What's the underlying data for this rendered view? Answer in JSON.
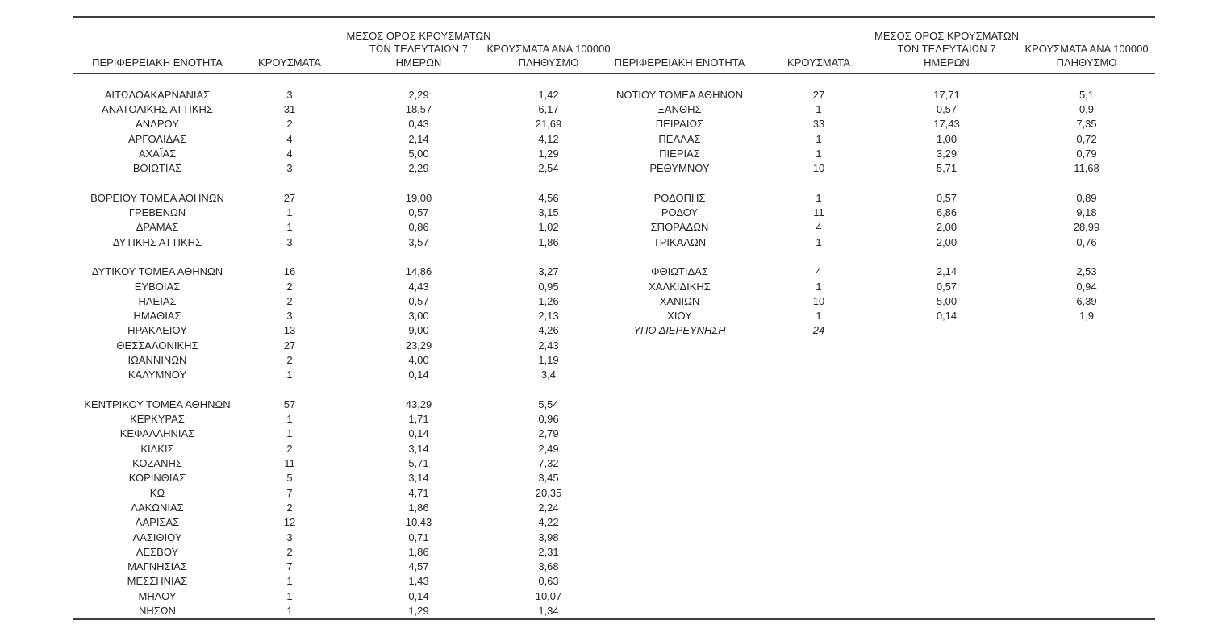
{
  "table": {
    "headers": {
      "region": "ΠΕΡΙΦΕΡΕΙΑΚΗ ΕΝΟΤΗΤΑ",
      "cases": "ΚΡΟΥΣΜΑΤΑ",
      "avg7": "ΜΕΣΟΣ ΟΡΟΣ ΚΡΟΥΣΜΑΤΩΝ\nΤΩΝ ΤΕΛΕΥΤΑΙΩΝ 7\nΗΜΕΡΩΝ",
      "per100k": "ΚΡΟΥΣΜΑΤΑ ΑΝΑ 100000\nΠΛΗΘΥΣΜΟ"
    },
    "text_color": "#262626",
    "rule_color": "#3d3d3d",
    "rows": [
      {
        "left": {
          "region": "ΑΙΤΩΛΟΑΚΑΡΝΑΝΙΑΣ",
          "cases": "3",
          "avg7": "2,29",
          "per100k": "1,42"
        },
        "right": {
          "region": "ΝΟΤΙΟΥ ΤΟΜΕΑ ΑΘΗΝΩΝ",
          "cases": "27",
          "avg7": "17,71",
          "per100k": "5,1"
        }
      },
      {
        "left": {
          "region": "ΑΝΑΤΟΛΙΚΗΣ ΑΤΤΙΚΗΣ",
          "cases": "31",
          "avg7": "18,57",
          "per100k": "6,17"
        },
        "right": {
          "region": "ΞΑΝΘΗΣ",
          "cases": "1",
          "avg7": "0,57",
          "per100k": "0,9"
        }
      },
      {
        "left": {
          "region": "ΑΝΔΡΟΥ",
          "cases": "2",
          "avg7": "0,43",
          "per100k": "21,69"
        },
        "right": {
          "region": "ΠΕΙΡΑΙΩΣ",
          "cases": "33",
          "avg7": "17,43",
          "per100k": "7,35"
        }
      },
      {
        "left": {
          "region": "ΑΡΓΟΛΙΔΑΣ",
          "cases": "4",
          "avg7": "2,14",
          "per100k": "4,12"
        },
        "right": {
          "region": "ΠΕΛΛΑΣ",
          "cases": "1",
          "avg7": "1,00",
          "per100k": "0,72"
        }
      },
      {
        "left": {
          "region": "ΑΧΑΪΑΣ",
          "cases": "4",
          "avg7": "5,00",
          "per100k": "1,29"
        },
        "right": {
          "region": "ΠΙΕΡΙΑΣ",
          "cases": "1",
          "avg7": "3,29",
          "per100k": "0,79"
        }
      },
      {
        "left": {
          "region": "ΒΟΙΩΤΙΑΣ",
          "cases": "3",
          "avg7": "2,29",
          "per100k": "2,54"
        },
        "right": {
          "region": "ΡΕΘΥΜΝΟΥ",
          "cases": "10",
          "avg7": "5,71",
          "per100k": "11,68"
        }
      },
      {
        "spacer": true
      },
      {
        "left": {
          "region": "ΒΟΡΕΙΟΥ ΤΟΜΕΑ ΑΘΗΝΩΝ",
          "cases": "27",
          "avg7": "19,00",
          "per100k": "4,56"
        },
        "right": {
          "region": "ΡΟΔΟΠΗΣ",
          "cases": "1",
          "avg7": "0,57",
          "per100k": "0,89"
        }
      },
      {
        "left": {
          "region": "ΓΡΕΒΕΝΩΝ",
          "cases": "1",
          "avg7": "0,57",
          "per100k": "3,15"
        },
        "right": {
          "region": "ΡΟΔΟΥ",
          "cases": "11",
          "avg7": "6,86",
          "per100k": "9,18"
        }
      },
      {
        "left": {
          "region": "ΔΡΑΜΑΣ",
          "cases": "1",
          "avg7": "0,86",
          "per100k": "1,02"
        },
        "right": {
          "region": "ΣΠΟΡΑΔΩΝ",
          "cases": "4",
          "avg7": "2,00",
          "per100k": "28,99"
        }
      },
      {
        "left": {
          "region": "ΔΥΤΙΚΗΣ ΑΤΤΙΚΗΣ",
          "cases": "3",
          "avg7": "3,57",
          "per100k": "1,86"
        },
        "right": {
          "region": "ΤΡΙΚΑΛΩΝ",
          "cases": "1",
          "avg7": "2,00",
          "per100k": "0,76"
        }
      },
      {
        "spacer": true
      },
      {
        "left": {
          "region": "ΔΥΤΙΚΟΥ ΤΟΜΕΑ ΑΘΗΝΩΝ",
          "cases": "16",
          "avg7": "14,86",
          "per100k": "3,27"
        },
        "right": {
          "region": "ΦΘΙΩΤΙΔΑΣ",
          "cases": "4",
          "avg7": "2,14",
          "per100k": "2,53"
        }
      },
      {
        "left": {
          "region": "ΕΥΒΟΙΑΣ",
          "cases": "2",
          "avg7": "4,43",
          "per100k": "0,95"
        },
        "right": {
          "region": "ΧΑΛΚΙΔΙΚΗΣ",
          "cases": "1",
          "avg7": "0,57",
          "per100k": "0,94"
        }
      },
      {
        "left": {
          "region": "ΗΛΕΙΑΣ",
          "cases": "2",
          "avg7": "0,57",
          "per100k": "1,26"
        },
        "right": {
          "region": "ΧΑΝΙΩΝ",
          "cases": "10",
          "avg7": "5,00",
          "per100k": "6,39"
        }
      },
      {
        "left": {
          "region": "ΗΜΑΘΙΑΣ",
          "cases": "3",
          "avg7": "3,00",
          "per100k": "2,13"
        },
        "right": {
          "region": "ΧΙΟΥ",
          "cases": "1",
          "avg7": "0,14",
          "per100k": "1,9"
        }
      },
      {
        "left": {
          "region": "ΗΡΑΚΛΕΙΟΥ",
          "cases": "13",
          "avg7": "9,00",
          "per100k": "4,26"
        },
        "right": {
          "region": "ΥΠΟ ΔΙΕΡΕΥΝΗΣΗ",
          "cases": "24",
          "avg7": "",
          "per100k": "",
          "italic": true
        }
      },
      {
        "left": {
          "region": "ΘΕΣΣΑΛΟΝΙΚΗΣ",
          "cases": "27",
          "avg7": "23,29",
          "per100k": "2,43"
        }
      },
      {
        "left": {
          "region": "ΙΩΑΝΝΙΝΩΝ",
          "cases": "2",
          "avg7": "4,00",
          "per100k": "1,19"
        }
      },
      {
        "left": {
          "region": "ΚΑΛΥΜΝΟΥ",
          "cases": "1",
          "avg7": "0,14",
          "per100k": "3,4"
        }
      },
      {
        "spacer": true
      },
      {
        "left": {
          "region": "ΚΕΝΤΡΙΚΟΥ ΤΟΜΕΑ ΑΘΗΝΩΝ",
          "cases": "57",
          "avg7": "43,29",
          "per100k": "5,54"
        }
      },
      {
        "left": {
          "region": "ΚΕΡΚΥΡΑΣ",
          "cases": "1",
          "avg7": "1,71",
          "per100k": "0,96"
        }
      },
      {
        "left": {
          "region": "ΚΕΦΑΛΛΗΝΙΑΣ",
          "cases": "1",
          "avg7": "0,14",
          "per100k": "2,79"
        }
      },
      {
        "left": {
          "region": "ΚΙΛΚΙΣ",
          "cases": "2",
          "avg7": "3,14",
          "per100k": "2,49"
        }
      },
      {
        "left": {
          "region": "ΚΟΖΑΝΗΣ",
          "cases": "11",
          "avg7": "5,71",
          "per100k": "7,32"
        }
      },
      {
        "left": {
          "region": "ΚΟΡΙΝΘΙΑΣ",
          "cases": "5",
          "avg7": "3,14",
          "per100k": "3,45"
        }
      },
      {
        "left": {
          "region": "ΚΩ",
          "cases": "7",
          "avg7": "4,71",
          "per100k": "20,35"
        }
      },
      {
        "left": {
          "region": "ΛΑΚΩΝΙΑΣ",
          "cases": "2",
          "avg7": "1,86",
          "per100k": "2,24"
        }
      },
      {
        "left": {
          "region": "ΛΑΡΙΣΑΣ",
          "cases": "12",
          "avg7": "10,43",
          "per100k": "4,22"
        }
      },
      {
        "left": {
          "region": "ΛΑΣΙΘΙΟΥ",
          "cases": "3",
          "avg7": "0,71",
          "per100k": "3,98"
        }
      },
      {
        "left": {
          "region": "ΛΕΣΒΟΥ",
          "cases": "2",
          "avg7": "1,86",
          "per100k": "2,31"
        }
      },
      {
        "left": {
          "region": "ΜΑΓΝΗΣΙΑΣ",
          "cases": "7",
          "avg7": "4,57",
          "per100k": "3,68"
        }
      },
      {
        "left": {
          "region": "ΜΕΣΣΗΝΙΑΣ",
          "cases": "1",
          "avg7": "1,43",
          "per100k": "0,63"
        }
      },
      {
        "left": {
          "region": "ΜΗΛΟΥ",
          "cases": "1",
          "avg7": "0,14",
          "per100k": "10,07"
        }
      },
      {
        "left": {
          "region": "ΝΗΣΩΝ",
          "cases": "1",
          "avg7": "1,29",
          "per100k": "1,34"
        }
      }
    ]
  }
}
